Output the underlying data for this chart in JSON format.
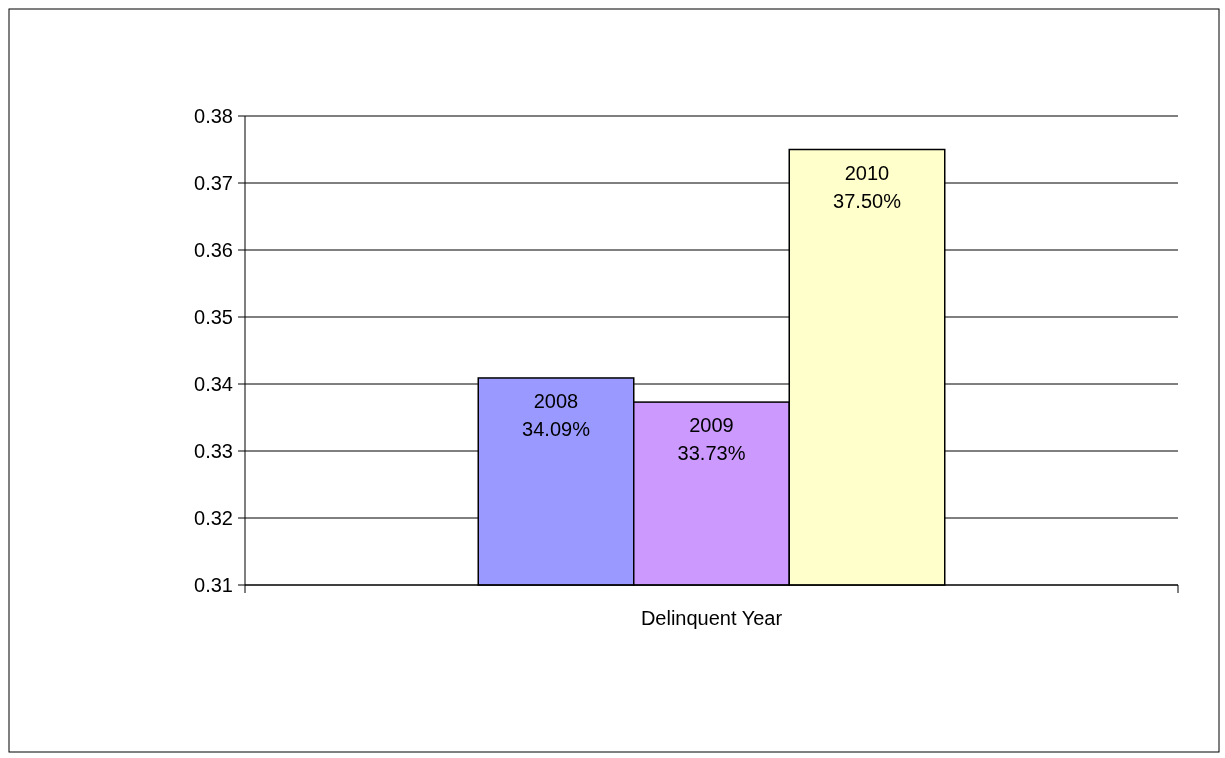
{
  "chart_data": {
    "type": "bar",
    "categories": [
      "Delinquent Year"
    ],
    "series": [
      {
        "name": "2008",
        "color": "#9999ff",
        "values": [
          0.3409
        ],
        "value_labels": [
          "34.09%"
        ]
      },
      {
        "name": "2009",
        "color": "#cc99ff",
        "values": [
          0.3373
        ],
        "value_labels": [
          "33.73%"
        ]
      },
      {
        "name": "2010",
        "color": "#ffffcc",
        "values": [
          0.375
        ],
        "value_labels": [
          "37.50%"
        ]
      }
    ],
    "ylim": [
      0.31,
      0.38
    ],
    "yticks": [
      0.31,
      0.32,
      0.33,
      0.34,
      0.35,
      0.36,
      0.37,
      0.38
    ],
    "grid": "y"
  }
}
